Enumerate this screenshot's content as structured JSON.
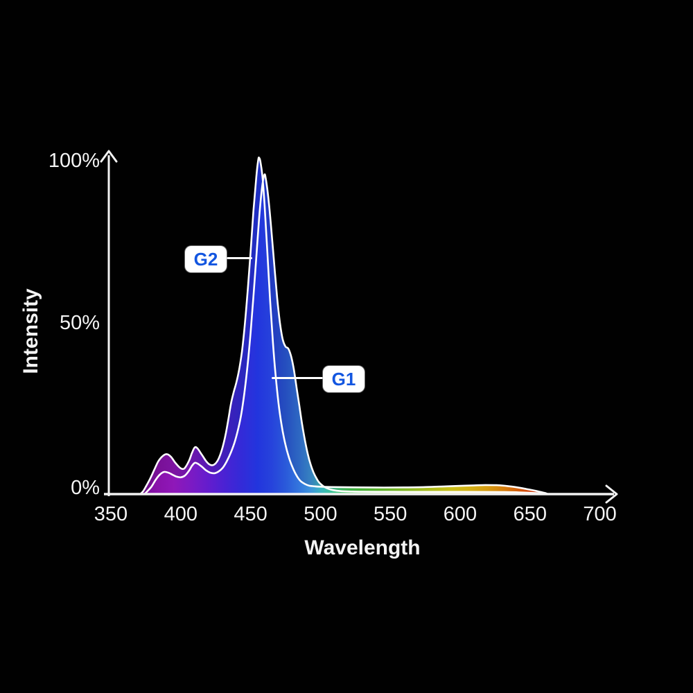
{
  "page": {
    "background": "#000000"
  },
  "axis": {
    "x_title": "Wavelength",
    "y_title": "Intensity",
    "x_ticks": [
      "350",
      "400",
      "450",
      "500",
      "550",
      "600",
      "650",
      "700"
    ],
    "y_ticks": [
      "100%",
      "50%",
      "0%"
    ],
    "axis_color": "#f2f2f2"
  },
  "labels": {
    "g2": "G2",
    "g1": "G1",
    "badge_background": "#ffffff",
    "badge_text_color": "#1356e0",
    "pointer_color": "#ffffff"
  },
  "chart_data": {
    "type": "area",
    "title": "",
    "xlabel": "Wavelength",
    "ylabel": "Intensity",
    "x_unit": "nm",
    "xlim": [
      350,
      700
    ],
    "ylim_percent": [
      0,
      100
    ],
    "x_ticks": [
      350,
      400,
      450,
      500,
      550,
      600,
      650,
      700
    ],
    "y_ticks_percent": [
      100,
      50,
      0
    ],
    "grid": false,
    "legend": "inline-callouts",
    "curve_stroke": "#ffffff",
    "fill": "spectrum-gradient",
    "series": [
      {
        "name": "G2",
        "peak_nm": 456,
        "peak_percent": 100,
        "points": [
          [
            371,
            0
          ],
          [
            373,
            0.8
          ],
          [
            375,
            2.2
          ],
          [
            378,
            4.5
          ],
          [
            381,
            7.2
          ],
          [
            384,
            9.8
          ],
          [
            387,
            11.3
          ],
          [
            390,
            11.9
          ],
          [
            393,
            11.1
          ],
          [
            396,
            9.4
          ],
          [
            399,
            8.0
          ],
          [
            401,
            7.5
          ],
          [
            403,
            7.8
          ],
          [
            406,
            10.0
          ],
          [
            408,
            12.2
          ],
          [
            410,
            13.9
          ],
          [
            412,
            13.6
          ],
          [
            415,
            11.8
          ],
          [
            418,
            9.9
          ],
          [
            420,
            9.0
          ],
          [
            422,
            8.6
          ],
          [
            424,
            8.8
          ],
          [
            426,
            9.7
          ],
          [
            428,
            11.4
          ],
          [
            430,
            14.0
          ],
          [
            432,
            17.5
          ],
          [
            434,
            22.0
          ],
          [
            436,
            27.0
          ],
          [
            438,
            30.5
          ],
          [
            440,
            33.5
          ],
          [
            442,
            37.5
          ],
          [
            444,
            43.0
          ],
          [
            446,
            51.0
          ],
          [
            448,
            61.0
          ],
          [
            450,
            72.0
          ],
          [
            452,
            84.0
          ],
          [
            454,
            94.0
          ],
          [
            455.5,
            99.5
          ],
          [
            456.2,
            100.0
          ],
          [
            457,
            99.0
          ],
          [
            458.5,
            94.5
          ],
          [
            460,
            86.0
          ],
          [
            462,
            72.0
          ],
          [
            464,
            57.5
          ],
          [
            466,
            45.0
          ],
          [
            468,
            35.0
          ],
          [
            470,
            27.0
          ],
          [
            472,
            21.0
          ],
          [
            474,
            16.5
          ],
          [
            476,
            13.0
          ],
          [
            478,
            10.2
          ],
          [
            480,
            8.0
          ],
          [
            482,
            6.2
          ],
          [
            484,
            4.8
          ],
          [
            486,
            3.8
          ],
          [
            489,
            3.0
          ],
          [
            492,
            2.5
          ],
          [
            496,
            2.3
          ],
          [
            500,
            2.2
          ],
          [
            508,
            2.1
          ],
          [
            518,
            2.05
          ],
          [
            530,
            2.0
          ],
          [
            545,
            1.95
          ],
          [
            560,
            2.0
          ],
          [
            575,
            2.1
          ],
          [
            590,
            2.3
          ],
          [
            600,
            2.45
          ],
          [
            610,
            2.6
          ],
          [
            618,
            2.7
          ],
          [
            626,
            2.65
          ],
          [
            634,
            2.4
          ],
          [
            641,
            2.0
          ],
          [
            647,
            1.55
          ],
          [
            652,
            1.15
          ],
          [
            656,
            0.8
          ],
          [
            659,
            0.5
          ],
          [
            661,
            0.3
          ],
          [
            663,
            0
          ]
        ]
      },
      {
        "name": "G1",
        "peak_nm": 460,
        "peak_percent": 95,
        "points": [
          [
            374,
            0
          ],
          [
            376,
            0.8
          ],
          [
            379,
            2.2
          ],
          [
            382,
            4.2
          ],
          [
            385,
            5.8
          ],
          [
            388,
            6.6
          ],
          [
            391,
            6.4
          ],
          [
            394,
            5.8
          ],
          [
            397,
            5.2
          ],
          [
            400,
            5.0
          ],
          [
            403,
            5.5
          ],
          [
            406,
            7.0
          ],
          [
            408,
            8.4
          ],
          [
            410,
            9.3
          ],
          [
            412,
            9.1
          ],
          [
            415,
            8.2
          ],
          [
            418,
            7.1
          ],
          [
            421,
            6.4
          ],
          [
            424,
            6.2
          ],
          [
            427,
            6.7
          ],
          [
            430,
            7.8
          ],
          [
            433,
            9.8
          ],
          [
            436,
            12.5
          ],
          [
            439,
            16.0
          ],
          [
            442,
            21.0
          ],
          [
            444,
            25.5
          ],
          [
            446,
            31.5
          ],
          [
            448,
            39.0
          ],
          [
            450,
            48.0
          ],
          [
            452,
            58.5
          ],
          [
            454,
            70.0
          ],
          [
            456,
            81.5
          ],
          [
            458,
            90.5
          ],
          [
            459.8,
            95.0
          ],
          [
            461,
            93.5
          ],
          [
            463,
            87.0
          ],
          [
            465,
            78.0
          ],
          [
            467,
            68.0
          ],
          [
            469,
            58.5
          ],
          [
            471,
            51.0
          ],
          [
            473,
            46.0
          ],
          [
            475,
            43.9
          ],
          [
            477,
            43.3
          ],
          [
            479,
            41.0
          ],
          [
            481,
            37.0
          ],
          [
            483,
            31.5
          ],
          [
            485,
            26.0
          ],
          [
            487,
            20.5
          ],
          [
            489,
            15.8
          ],
          [
            491,
            11.8
          ],
          [
            493,
            8.8
          ],
          [
            495,
            6.5
          ],
          [
            497,
            4.8
          ],
          [
            499,
            3.5
          ],
          [
            502,
            2.4
          ],
          [
            505,
            1.7
          ],
          [
            509,
            1.2
          ],
          [
            514,
            0.9
          ],
          [
            520,
            0.78
          ],
          [
            530,
            0.7
          ],
          [
            545,
            0.68
          ],
          [
            560,
            0.67
          ],
          [
            580,
            0.66
          ],
          [
            600,
            0.66
          ],
          [
            618,
            0.64
          ],
          [
            632,
            0.6
          ],
          [
            642,
            0.52
          ],
          [
            650,
            0.4
          ],
          [
            656,
            0.25
          ],
          [
            660,
            0.12
          ],
          [
            662,
            0
          ]
        ]
      }
    ],
    "spectrum_gradient": [
      {
        "nm": 372,
        "color": "#7B0D9C"
      },
      {
        "nm": 383,
        "color": "#8C12AE"
      },
      {
        "nm": 395,
        "color": "#9218BC"
      },
      {
        "nm": 408,
        "color": "#7D1BC8"
      },
      {
        "nm": 420,
        "color": "#651DD2"
      },
      {
        "nm": 432,
        "color": "#4A23D8"
      },
      {
        "nm": 443,
        "color": "#352BDC"
      },
      {
        "nm": 455,
        "color": "#2336E2"
      },
      {
        "nm": 465,
        "color": "#2744E0"
      },
      {
        "nm": 475,
        "color": "#2B5BDE"
      },
      {
        "nm": 485,
        "color": "#3579E2"
      },
      {
        "nm": 493,
        "color": "#3F97E0"
      },
      {
        "nm": 501,
        "color": "#3CBCC0"
      },
      {
        "nm": 509,
        "color": "#3FC996"
      },
      {
        "nm": 517,
        "color": "#46CC62"
      },
      {
        "nm": 528,
        "color": "#4FCC40"
      },
      {
        "nm": 545,
        "color": "#72D032"
      },
      {
        "nm": 562,
        "color": "#9CD62A"
      },
      {
        "nm": 578,
        "color": "#C8DC22"
      },
      {
        "nm": 592,
        "color": "#E8DF1E"
      },
      {
        "nm": 606,
        "color": "#F6D01A"
      },
      {
        "nm": 620,
        "color": "#F9B414"
      },
      {
        "nm": 633,
        "color": "#F98E10"
      },
      {
        "nm": 645,
        "color": "#F55E0C"
      },
      {
        "nm": 654,
        "color": "#EF3A0C"
      },
      {
        "nm": 663,
        "color": "#E8200A"
      }
    ]
  }
}
